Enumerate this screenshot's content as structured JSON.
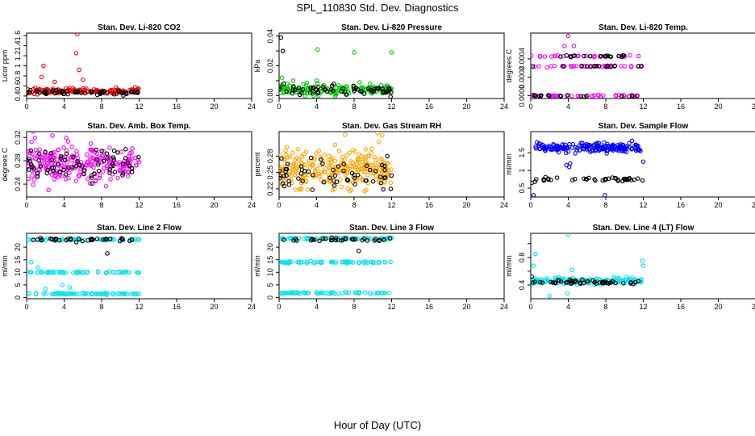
{
  "figure": {
    "title": "SPL_110830  Std. Dev. Diagnostics",
    "xlabel": "Hour of Day (UTC)"
  },
  "chart_data": [
    {
      "type": "scatter",
      "title": "Stan. Dev. Li-820 CO2",
      "ylabel": "Licor ppm",
      "xlim": [
        0,
        24
      ],
      "ylim": [
        0.35,
        1.65
      ],
      "xticks": [
        0,
        4,
        8,
        12,
        16,
        20,
        24
      ],
      "yticks": [
        0.4,
        0.6,
        0.8,
        1.0,
        1.2,
        1.4,
        1.6
      ],
      "series": [
        {
          "name": "red",
          "color": "#ff0000",
          "x_range": [
            0,
            12
          ],
          "mean": 0.5,
          "spread": 0.05,
          "n": 140,
          "outliers": [
            [
              5.4,
              1.63
            ],
            [
              5.3,
              1.25
            ],
            [
              1.8,
              1.0
            ],
            [
              5.6,
              0.92
            ],
            [
              1.6,
              0.78
            ],
            [
              6.0,
              0.72
            ],
            [
              3.0,
              0.68
            ]
          ]
        },
        {
          "name": "black",
          "color": "#000000",
          "x_range": [
            0,
            12
          ],
          "mean": 0.47,
          "spread": 0.05,
          "n": 60
        }
      ]
    },
    {
      "type": "scatter",
      "title": "Stan. Dev. Li-820 Pressure",
      "ylabel": "kPa",
      "xlim": [
        0,
        24
      ],
      "ylim": [
        -0.002,
        0.042
      ],
      "xticks": [
        0,
        4,
        8,
        12,
        16,
        20,
        24
      ],
      "yticks": [
        0.0,
        0.01,
        0.02,
        0.03,
        0.04
      ],
      "ytick_labels": [
        "0.00",
        "",
        "0.02",
        "",
        "0.04"
      ],
      "series": [
        {
          "name": "green",
          "color": "#00cc00",
          "x_range": [
            0,
            12
          ],
          "mean": 0.004,
          "spread": 0.003,
          "n": 160,
          "outliers": [
            [
              0.4,
              0.03
            ],
            [
              4.1,
              0.031
            ],
            [
              8.0,
              0.029
            ],
            [
              12.0,
              0.029
            ],
            [
              0.3,
              0.012
            ],
            [
              1.5,
              0.01
            ],
            [
              4.0,
              0.01
            ]
          ]
        },
        {
          "name": "black",
          "color": "#000000",
          "x_range": [
            0,
            12
          ],
          "mean": 0.004,
          "spread": 0.003,
          "n": 60,
          "outliers": [
            [
              0.2,
              0.039
            ],
            [
              0.4,
              0.03
            ],
            [
              0.5,
              0.008
            ]
          ]
        }
      ]
    },
    {
      "type": "scatter",
      "title": "Stan. Dev. Li-820 Temp.",
      "ylabel": "degrees C",
      "xlim": [
        0,
        24
      ],
      "ylim": [
        -3e-05,
        0.00068
      ],
      "xticks": [
        0,
        4,
        8,
        12,
        16,
        20,
        24
      ],
      "yticks": [
        0.0,
        0.0002,
        0.0004
      ],
      "ytick_labels": [
        "0.0000",
        "0.0002",
        "0.0004"
      ],
      "series": [
        {
          "name": "magenta",
          "color": "#ff00ff",
          "x_range": [
            0,
            12
          ],
          "levels": [
            0,
            0.00032,
            0.00043
          ],
          "n": 110,
          "outliers": [
            [
              4.0,
              0.00065
            ],
            [
              3.6,
              0.00054
            ],
            [
              4.6,
              0.00054
            ]
          ]
        },
        {
          "name": "black",
          "color": "#000000",
          "x_range": [
            0,
            12
          ],
          "levels": [
            0,
            0.00032,
            0.00043
          ],
          "n": 50
        }
      ]
    },
    {
      "type": "scatter",
      "title": "Stan. Dev. Amb. Box Temp.",
      "ylabel": "degrees C",
      "xlim": [
        0,
        24
      ],
      "ylim": [
        0.218,
        0.33
      ],
      "xticks": [
        0,
        4,
        8,
        12,
        16,
        20,
        24
      ],
      "yticks": [
        0.24,
        0.28,
        0.32
      ],
      "series": [
        {
          "name": "magenta",
          "color": "#ff00ff",
          "x_range": [
            0,
            12
          ],
          "mean": 0.275,
          "spread": 0.03,
          "n": 230
        },
        {
          "name": "black",
          "color": "#000000",
          "x_range": [
            0,
            12
          ],
          "mean": 0.272,
          "spread": 0.025,
          "n": 70
        }
      ]
    },
    {
      "type": "scatter",
      "title": "Stan. Dev. Gas Stream RH",
      "ylabel": "percent",
      "xlim": [
        0,
        24
      ],
      "ylim": [
        0.205,
        0.325
      ],
      "xticks": [
        0,
        4,
        8,
        12,
        16,
        20,
        24
      ],
      "yticks": [
        0.22,
        0.25,
        0.28
      ],
      "series": [
        {
          "name": "orange",
          "color": "#ffa500",
          "x_range": [
            0,
            12
          ],
          "mean": 0.255,
          "spread": 0.03,
          "n": 260,
          "outliers": [
            [
              10.5,
              0.322
            ],
            [
              11.0,
              0.318
            ]
          ]
        },
        {
          "name": "black",
          "color": "#000000",
          "x_range": [
            0,
            12
          ],
          "mean": 0.248,
          "spread": 0.022,
          "n": 60
        }
      ]
    },
    {
      "type": "scatter",
      "title": "Stan. Dev. Sample Flow",
      "ylabel": "ml/min",
      "xlim": [
        0,
        24
      ],
      "ylim": [
        0.25,
        2.1
      ],
      "xticks": [
        0,
        4,
        8,
        12,
        16,
        20,
        24
      ],
      "yticks": [
        0.5,
        1.0,
        1.5
      ],
      "series": [
        {
          "name": "blue",
          "color": "#0000ff",
          "x_range": [
            0.5,
            12
          ],
          "mean": 1.65,
          "spread": 0.12,
          "n": 190,
          "outliers": [
            [
              3.8,
              1.15
            ],
            [
              4.1,
              1.1
            ],
            [
              4.2,
              1.2
            ],
            [
              0.3,
              0.3
            ],
            [
              7.9,
              0.3
            ],
            [
              12.0,
              1.25
            ]
          ]
        },
        {
          "name": "black",
          "color": "#000000",
          "x_range": [
            0,
            12
          ],
          "mean": 0.75,
          "spread": 0.05,
          "n": 40,
          "outliers": [
            [
              0.1,
              0.65
            ]
          ]
        }
      ]
    },
    {
      "type": "scatter",
      "title": "Stan. Dev. Line 2 Flow",
      "ylabel": "ml/min",
      "xlim": [
        0,
        24
      ],
      "ylim": [
        -0.5,
        25.5
      ],
      "xticks": [
        0,
        4,
        8,
        12,
        16,
        20,
        24
      ],
      "yticks": [
        0,
        5,
        10,
        15,
        20
      ],
      "series": [
        {
          "name": "cyan",
          "color": "#00e5ee",
          "x_range": [
            0,
            12
          ],
          "levels": [
            23,
            10,
            1.5
          ],
          "n": 200,
          "outliers": [
            [
              0.5,
              14
            ],
            [
              1.2,
              12
            ],
            [
              2.0,
              3.5
            ],
            [
              3.8,
              5
            ],
            [
              4.6,
              4
            ]
          ]
        },
        {
          "name": "black",
          "color": "#000000",
          "x_range": [
            0,
            12
          ],
          "mean": 23,
          "spread": 0.6,
          "n": 35,
          "outliers": [
            [
              8.6,
              17.5
            ],
            [
              5.3,
              22
            ]
          ]
        }
      ]
    },
    {
      "type": "scatter",
      "title": "Stan. Dev. Line 3 Flow",
      "ylabel": "ml/min",
      "xlim": [
        0,
        24
      ],
      "ylim": [
        -0.5,
        25.5
      ],
      "xticks": [
        0,
        4,
        8,
        12,
        16,
        20,
        24
      ],
      "yticks": [
        0,
        5,
        10,
        15,
        20
      ],
      "series": [
        {
          "name": "cyan",
          "color": "#00e5ee",
          "x_range": [
            0,
            12
          ],
          "levels": [
            23.5,
            14,
            1.8
          ],
          "n": 200
        },
        {
          "name": "black",
          "color": "#000000",
          "x_range": [
            0,
            12
          ],
          "mean": 23,
          "spread": 0.6,
          "n": 35,
          "outliers": [
            [
              8.5,
              18.5
            ]
          ]
        }
      ]
    },
    {
      "type": "scatter",
      "title": "Stan. Dev. Line 4 (LT) Flow",
      "ylabel": "ml/min",
      "xlim": [
        0,
        24
      ],
      "ylim": [
        0.2,
        1.15
      ],
      "xticks": [
        0,
        4,
        8,
        12,
        16,
        20,
        24
      ],
      "yticks": [
        0.4,
        0.6,
        0.8,
        1.0
      ],
      "ytick_labels": [
        "0.4",
        "",
        "0.8",
        ""
      ],
      "series": [
        {
          "name": "cyan",
          "color": "#00e5ee",
          "x_range": [
            0,
            12
          ],
          "mean": 0.46,
          "spread": 0.04,
          "n": 140,
          "outliers": [
            [
              4.0,
              1.13
            ],
            [
              0.5,
              0.85
            ],
            [
              0.3,
              0.68
            ],
            [
              12.0,
              0.68
            ],
            [
              11.9,
              0.75
            ],
            [
              3.9,
              0.28
            ],
            [
              4.4,
              0.62
            ],
            [
              2.0,
              0.24
            ]
          ]
        },
        {
          "name": "black",
          "color": "#000000",
          "x_range": [
            0,
            12
          ],
          "mean": 0.44,
          "spread": 0.03,
          "n": 55,
          "outliers": [
            [
              0.1,
              0.52
            ]
          ]
        }
      ]
    }
  ]
}
